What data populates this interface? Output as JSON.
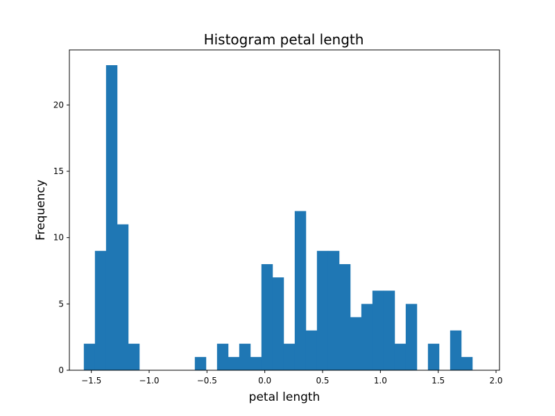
{
  "chart_data": {
    "type": "bar",
    "title": "Histogram petal length",
    "xlabel": "petal length",
    "ylabel": "Frequency",
    "xlim": [
      -1.69,
      2.03
    ],
    "ylim": [
      0,
      24.15
    ],
    "bar_color": "#1f77b4",
    "grid": false,
    "bin_edges": [
      -1.565,
      -1.469,
      -1.373,
      -1.277,
      -1.181,
      -1.085,
      -0.989,
      -0.893,
      -0.797,
      -0.701,
      -0.605,
      -0.509,
      -0.413,
      -0.317,
      -0.221,
      -0.125,
      -0.029,
      0.067,
      0.163,
      0.259,
      0.355,
      0.451,
      0.547,
      0.643,
      0.739,
      0.835,
      0.931,
      1.027,
      1.123,
      1.219,
      1.315,
      1.411,
      1.507,
      1.603,
      1.699,
      1.795,
      1.891
    ],
    "counts": [
      2,
      9,
      23,
      11,
      2,
      0,
      0,
      0,
      0,
      0,
      1,
      0,
      2,
      1,
      2,
      1,
      8,
      7,
      2,
      12,
      3,
      9,
      9,
      8,
      4,
      5,
      6,
      6,
      2,
      5,
      0,
      2,
      0,
      3,
      1,
      0
    ],
    "x_ticks": [
      {
        "value": -1.5,
        "label": "−1.5"
      },
      {
        "value": -1.0,
        "label": "−1.0"
      },
      {
        "value": -0.5,
        "label": "−0.5"
      },
      {
        "value": 0.0,
        "label": "0.0"
      },
      {
        "value": 0.5,
        "label": "0.5"
      },
      {
        "value": 1.0,
        "label": "1.0"
      },
      {
        "value": 1.5,
        "label": "1.5"
      },
      {
        "value": 2.0,
        "label": "2.0"
      }
    ],
    "y_ticks": [
      {
        "value": 0,
        "label": "0"
      },
      {
        "value": 5,
        "label": "5"
      },
      {
        "value": 10,
        "label": "10"
      },
      {
        "value": 15,
        "label": "15"
      },
      {
        "value": 20,
        "label": "20"
      }
    ]
  }
}
